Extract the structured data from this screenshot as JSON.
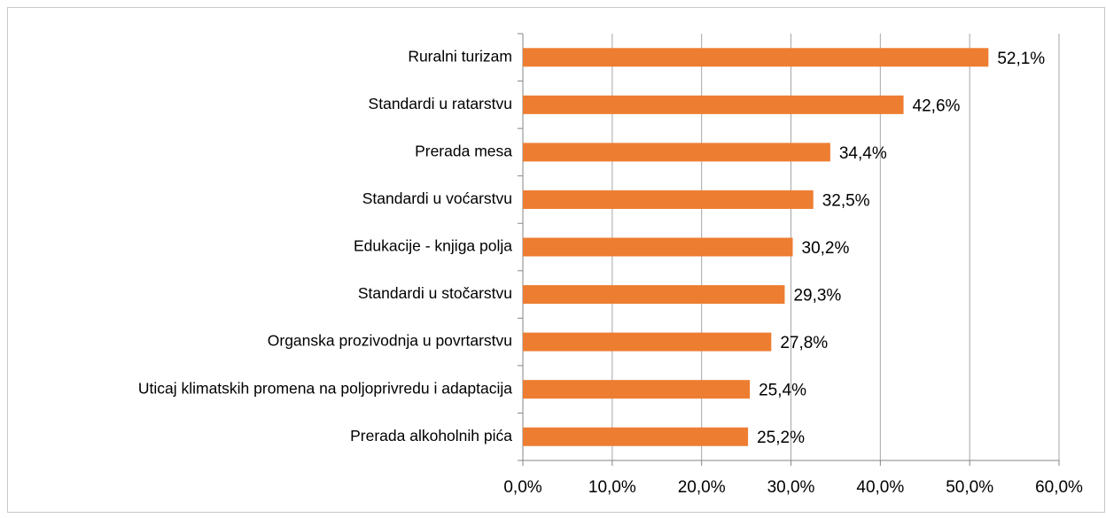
{
  "chart_data": {
    "type": "bar",
    "orientation": "horizontal",
    "categories": [
      "Ruralni turizam",
      "Standardi u ratarstvu",
      "Prerada mesa",
      "Standardi u voćarstvu",
      "Edukacije - knjiga polja",
      "Standardi u stočarstvu",
      "Organska prozivodnja u povrtarstvu",
      "Uticaj klimatskih promena na poljoprivredu i adaptacija",
      "Prerada alkoholnih pića"
    ],
    "values": [
      52.1,
      42.6,
      34.4,
      32.5,
      30.2,
      29.3,
      27.8,
      25.4,
      25.2
    ],
    "value_labels": [
      "52,1%",
      "42,6%",
      "34,4%",
      "32,5%",
      "30,2%",
      "29,3%",
      "27,8%",
      "25,4%",
      "25,2%"
    ],
    "color": "#ed7d31",
    "xlim": [
      0,
      60
    ],
    "xticks": [
      {
        "value": 0,
        "label": "0,0%"
      },
      {
        "value": 10,
        "label": "10,0%"
      },
      {
        "value": 20,
        "label": "20,0%"
      },
      {
        "value": 30,
        "label": "30,0%"
      },
      {
        "value": 40,
        "label": "40,0%"
      },
      {
        "value": 50,
        "label": "50,0%"
      },
      {
        "value": 60,
        "label": "60,0%"
      }
    ],
    "grid": true
  }
}
